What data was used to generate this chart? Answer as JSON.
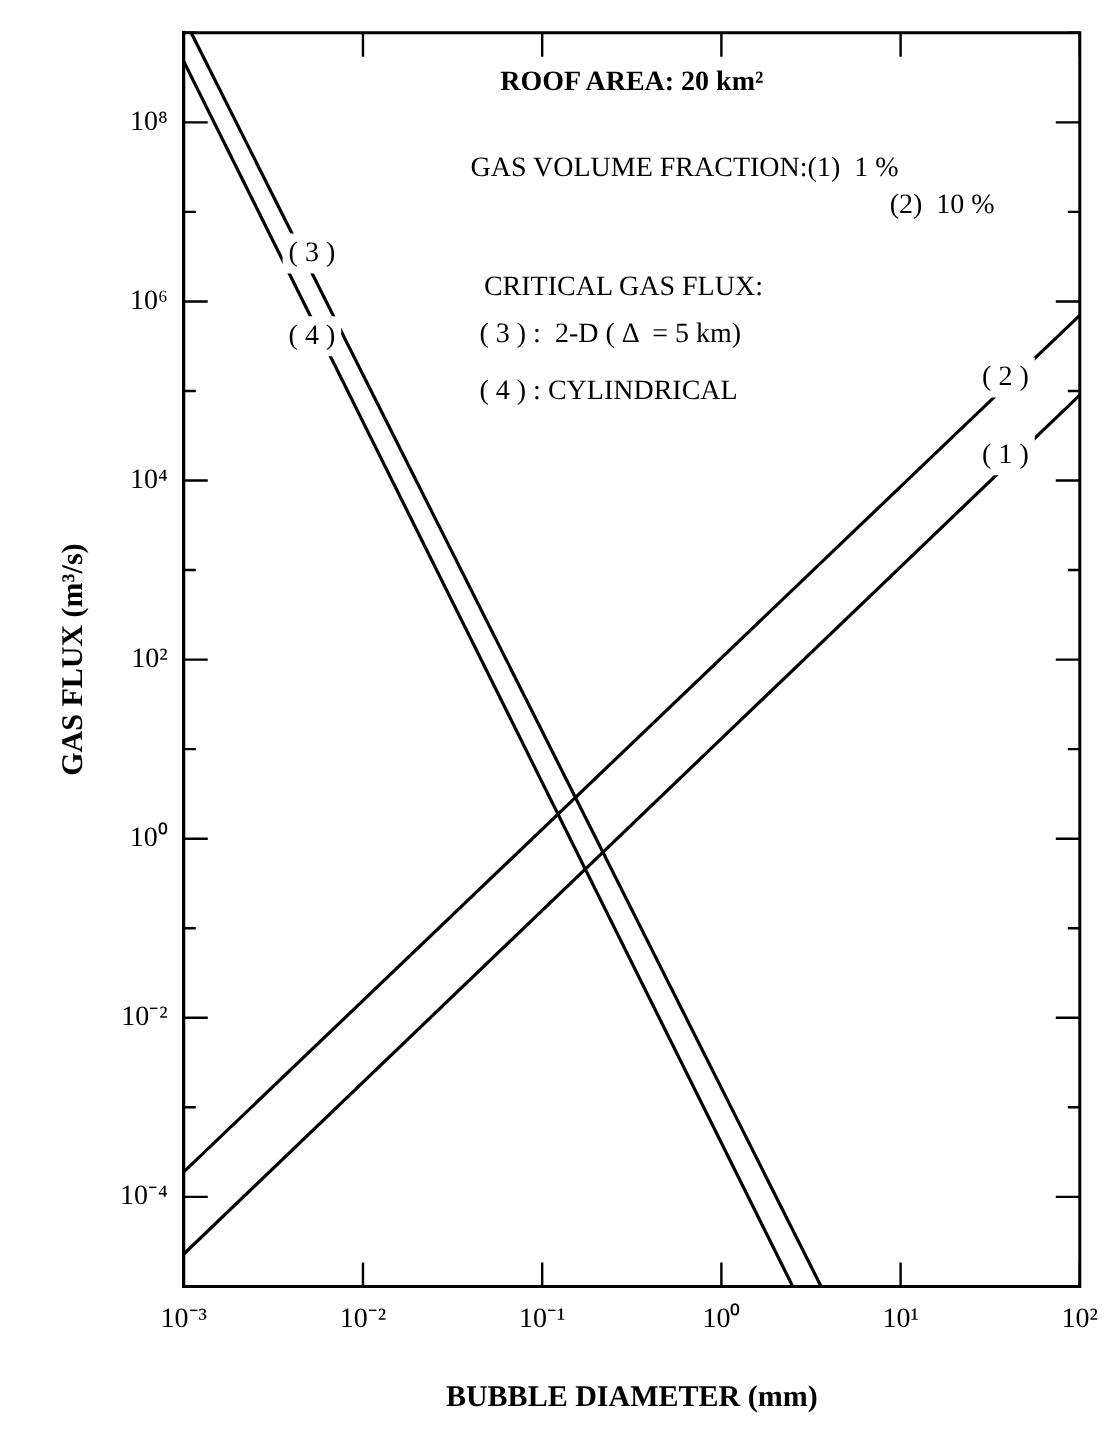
{
  "chart_data": {
    "type": "line",
    "xlabel": "BUBBLE DIAMETER (mm)",
    "ylabel": "GAS FLUX (m³/s)",
    "log": "xy",
    "grid": false,
    "legend": false,
    "marker": "none",
    "line_style": "solid",
    "xlim": [
      0.001,
      100
    ],
    "ylim": [
      1e-05,
      1000000000
    ],
    "xticks": [
      {
        "value": 0.001,
        "label": "10⁻³"
      },
      {
        "value": 0.01,
        "label": "10⁻²"
      },
      {
        "value": 0.1,
        "label": "10⁻¹"
      },
      {
        "value": 1,
        "label": "10⁰"
      },
      {
        "value": 10,
        "label": "10¹"
      },
      {
        "value": 100,
        "label": "10²"
      }
    ],
    "yticks": [
      {
        "value": 1e-05,
        "label": null
      },
      {
        "value": 0.0001,
        "label": "10⁻⁴"
      },
      {
        "value": 0.001,
        "label": null
      },
      {
        "value": 0.01,
        "label": "10⁻²"
      },
      {
        "value": 0.1,
        "label": null
      },
      {
        "value": 1,
        "label": "10⁰"
      },
      {
        "value": 10,
        "label": null
      },
      {
        "value": 100,
        "label": "10²"
      },
      {
        "value": 1000,
        "label": null
      },
      {
        "value": 10000,
        "label": "10⁴"
      },
      {
        "value": 100000,
        "label": null
      },
      {
        "value": 1000000,
        "label": "10⁶"
      },
      {
        "value": 10000000,
        "label": null
      },
      {
        "value": 100000000,
        "label": "10⁸"
      },
      {
        "value": 1000000000,
        "label": null
      }
    ],
    "series": [
      {
        "color": "#000000",
        "x": [
          0.001,
          100
        ],
        "values": [
          2.3e-05,
          90000
        ]
      },
      {
        "color": "#000000",
        "x": [
          0.001,
          100
        ],
        "values": [
          0.00019,
          700000
        ]
      },
      {
        "color": "#000000",
        "x": [
          0.0011,
          3.6
        ],
        "values": [
          1000000000,
          1e-05
        ]
      },
      {
        "color": "#000000",
        "x": [
          0.001,
          2.5
        ],
        "values": [
          480000000,
          1e-05
        ]
      }
    ],
    "annotations": [
      "ROOF AREA: 20 km²",
      "GAS VOLUME FRACTION:(1)  1 %",
      "(2)  10 %",
      "CRITICAL GAS FLUX:",
      "( 3 ) :  2-D ( Δ  = 5 km)",
      "( 4 ) : CYLINDRICAL",
      "( 3 )",
      "( 4 )",
      "( 2 )",
      "( 1 )"
    ]
  }
}
